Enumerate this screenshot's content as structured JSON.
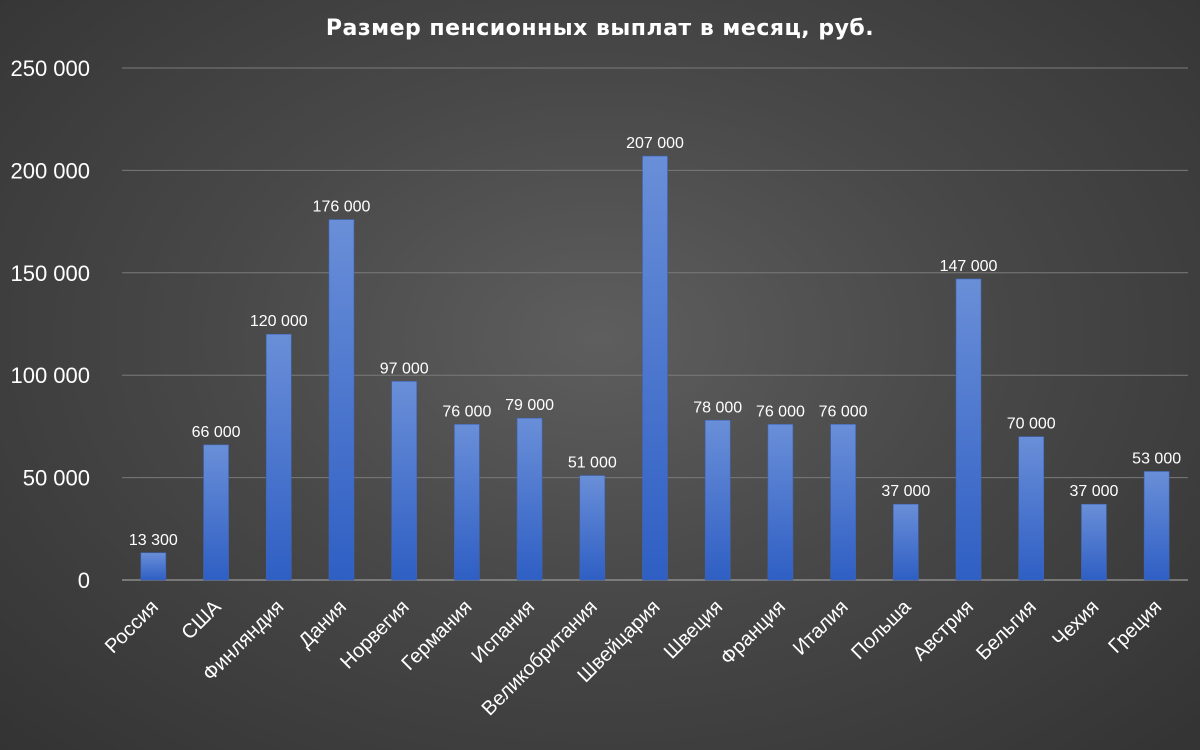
{
  "chart_data": {
    "type": "bar",
    "title": "Размер пенсионных выплат в месяц, руб.",
    "categories": [
      "Россия",
      "США",
      "Финляндия",
      "Дания",
      "Норвегия",
      "Германия",
      "Испания",
      "Великобритания",
      "Швейцария",
      "Швеция",
      "Франция",
      "Италия",
      "Польша",
      "Австрия",
      "Бельгия",
      "Чехия",
      "Греция"
    ],
    "values": [
      13300,
      66000,
      120000,
      176000,
      97000,
      76000,
      79000,
      51000,
      207000,
      78000,
      76000,
      76000,
      37000,
      147000,
      70000,
      37000,
      53000
    ],
    "data_labels": [
      "13 300",
      "66 000",
      "120 000",
      "176 000",
      "97 000",
      "76 000",
      "79 000",
      "51 000",
      "207 000",
      "78 000",
      "76 000",
      "76 000",
      "37 000",
      "147 000",
      "70 000",
      "37 000",
      "53 000"
    ],
    "ylim": [
      0,
      250000
    ],
    "yticks": [
      0,
      50000,
      100000,
      150000,
      200000,
      250000
    ],
    "ytick_labels": [
      "0",
      "50 000",
      "100 000",
      "150 000",
      "200 000",
      "250 000"
    ],
    "grid": true,
    "legend": "none",
    "colors": {
      "bar_top": "#6a8fd8",
      "bar_bottom": "#2f5fc4",
      "grid": "#7a7a7a",
      "text": "#ffffff"
    }
  }
}
